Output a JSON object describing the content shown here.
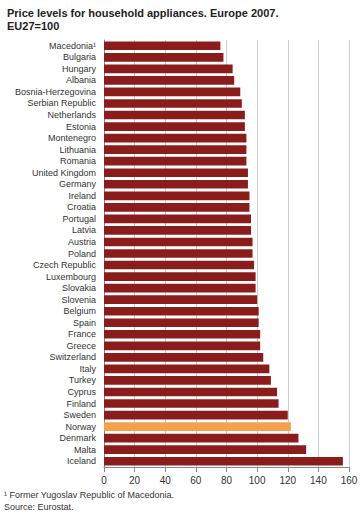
{
  "chart_data": {
    "type": "bar",
    "title": "Price levels for household appliances. Europe 2007.",
    "subtitle": "EU27=100",
    "orientation": "horizontal",
    "categories": [
      "Macedonia¹",
      "Bulgaria",
      "Hungary",
      "Albania",
      "Bosnia-Herzegovina",
      "Serbian Republic",
      "Netherlands",
      "Estonia",
      "Montenegro",
      "Lithuania",
      "Romania",
      "United Kingdom",
      "Germany",
      "Ireland",
      "Croatia",
      "Portugal",
      "Latvia",
      "Austria",
      "Poland",
      "Czech Republic",
      "Luxembourg",
      "Slovakia",
      "Slovenia",
      "Belgium",
      "Spain",
      "France",
      "Greece",
      "Switzerland",
      "Italy",
      "Turkey",
      "Cyprus",
      "Finland",
      "Sweden",
      "Norway",
      "Denmark",
      "Malta",
      "Iceland"
    ],
    "values": [
      76,
      78,
      84,
      85,
      89,
      90,
      92,
      92,
      93,
      93,
      93,
      94,
      94,
      95,
      95,
      96,
      96,
      97,
      97,
      98,
      99,
      99,
      100,
      101,
      101,
      102,
      102,
      104,
      108,
      109,
      113,
      114,
      120,
      122,
      127,
      132,
      156
    ],
    "colors": [
      "#8b1c1c",
      "#8b1c1c",
      "#8b1c1c",
      "#8b1c1c",
      "#8b1c1c",
      "#8b1c1c",
      "#8b1c1c",
      "#8b1c1c",
      "#8b1c1c",
      "#8b1c1c",
      "#8b1c1c",
      "#8b1c1c",
      "#8b1c1c",
      "#8b1c1c",
      "#8b1c1c",
      "#8b1c1c",
      "#8b1c1c",
      "#8b1c1c",
      "#8b1c1c",
      "#8b1c1c",
      "#8b1c1c",
      "#8b1c1c",
      "#8b1c1c",
      "#8b1c1c",
      "#8b1c1c",
      "#8b1c1c",
      "#8b1c1c",
      "#8b1c1c",
      "#8b1c1c",
      "#8b1c1c",
      "#8b1c1c",
      "#8b1c1c",
      "#8b1c1c",
      "#f5a04a",
      "#8b1c1c",
      "#8b1c1c",
      "#8b1c1c"
    ],
    "xlim": [
      0,
      160
    ],
    "xticks": [
      0,
      20,
      40,
      60,
      80,
      100,
      120,
      140,
      160
    ],
    "grid": true,
    "annotations": [
      "¹ Former Yugoslav Republic of Macedonia.",
      "Source: Eurostat."
    ]
  }
}
